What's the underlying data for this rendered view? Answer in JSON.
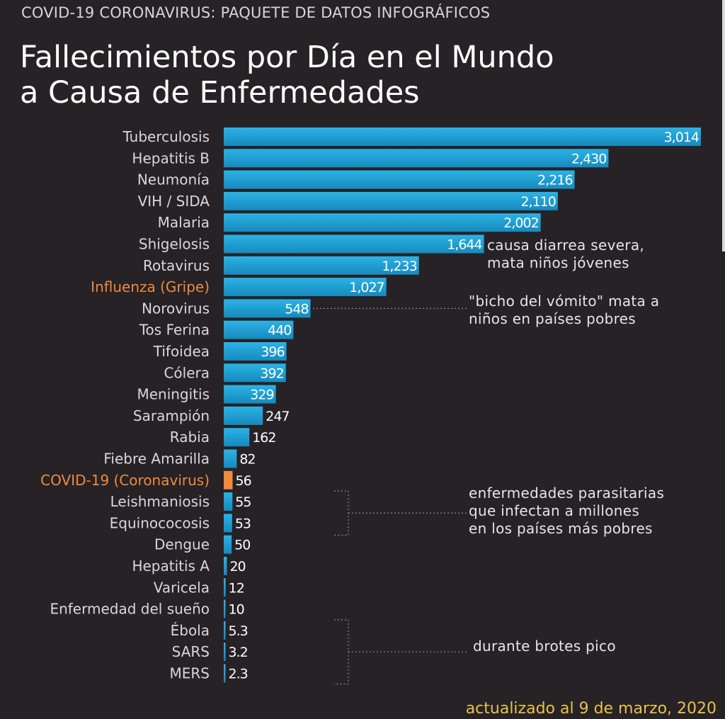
{
  "header": {
    "kicker": "COVID-19 CORONAVIRUS: PAQUETE DE DATOS INFOGRÁFICOS",
    "title_line1": "Fallecimientos por Día en el Mundo",
    "title_line2": "a Causa de Enfermedades"
  },
  "footer": {
    "updated": "actualizado al 9 de marzo, 2020"
  },
  "colors": {
    "background": "#262226",
    "bar": "#1f9fd6",
    "highlight": "#f08a3c",
    "label": "#d9d9d9",
    "footer": "#e8c24a"
  },
  "chart_data": {
    "type": "bar",
    "orientation": "horizontal",
    "title": "Fallecimientos por Día en el Mundo a Causa de Enfermedades",
    "xlabel": "",
    "ylabel": "",
    "grid": false,
    "legend": "none",
    "xlim": [
      0,
      3014
    ],
    "categories": [
      "Tuberculosis",
      "Hepatitis B",
      "Neumonía",
      "VIH / SIDA",
      "Malaria",
      "Shigelosis",
      "Rotavirus",
      "Influenza (Gripe)",
      "Norovirus",
      "Tos Ferina",
      "Tifoidea",
      "Cólera",
      "Meningitis",
      "Sarampión",
      "Rabia",
      "Fiebre Amarilla",
      "COVID-19 (Coronavirus)",
      "Leishmaniosis",
      "Equinococosis",
      "Dengue",
      "Hepatitis A",
      "Varicela",
      "Enfermedad del sueño",
      "Ébola",
      "SARS",
      "MERS"
    ],
    "values": [
      3014,
      2430,
      2216,
      2110,
      2002,
      1644,
      1233,
      1027,
      548,
      440,
      396,
      392,
      329,
      247,
      162,
      82,
      56,
      55,
      53,
      50,
      20,
      12,
      10,
      5.3,
      3.2,
      2.3
    ],
    "value_labels": [
      "3,014",
      "2,430",
      "2,216",
      "2,110",
      "2,002",
      "1,644",
      "1,233",
      "1,027",
      "548",
      "440",
      "396",
      "392",
      "329",
      "247",
      "162",
      "82",
      "56",
      "55",
      "53",
      "50",
      "20",
      "12",
      "10",
      "5.3",
      "3.2",
      "2.3"
    ],
    "highlighted": [
      "Influenza (Gripe)",
      "COVID-19 (Coronavirus)"
    ],
    "annotations": [
      {
        "text_lines": [
          "causa diarrea severa,",
          "mata niños jóvenes"
        ],
        "applies_to": [
          "Shigelosis",
          "Rotavirus"
        ]
      },
      {
        "text_lines": [
          "\"bicho del vómito\" mata a",
          "niños en países pobres"
        ],
        "applies_to": [
          "Norovirus"
        ]
      },
      {
        "text_lines": [
          "enfermedades parasitarias",
          "que infectan a millones",
          "en los países más pobres"
        ],
        "applies_to": [
          "Leishmaniosis",
          "Equinococosis"
        ]
      },
      {
        "text_lines": [
          "durante brotes pico"
        ],
        "applies_to": [
          "Ébola",
          "SARS",
          "MERS"
        ]
      }
    ]
  }
}
